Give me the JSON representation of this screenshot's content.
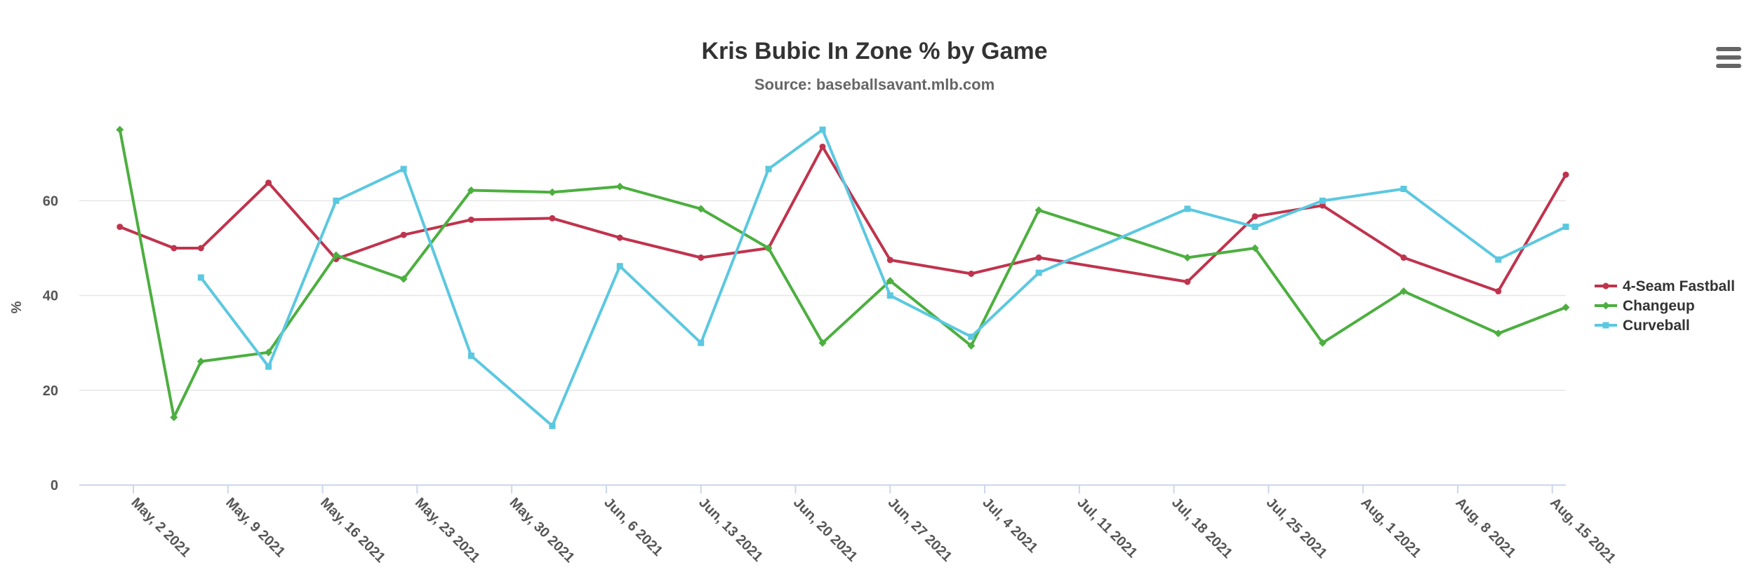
{
  "chart_data": {
    "type": "line",
    "title": "Kris Bubic In Zone % by Game",
    "subtitle": "Source: baseballsavant.mlb.com",
    "xlabel": "",
    "ylabel": "%",
    "x_type": "datetime",
    "xlim": [
      "2021-04-28",
      "2021-08-16"
    ],
    "ylim": [
      0,
      75
    ],
    "y_ticks": [
      0,
      20,
      40,
      60
    ],
    "x_ticks": [
      "2021-05-02",
      "2021-05-09",
      "2021-05-16",
      "2021-05-23",
      "2021-05-30",
      "2021-06-06",
      "2021-06-13",
      "2021-06-20",
      "2021-06-27",
      "2021-07-04",
      "2021-07-11",
      "2021-07-18",
      "2021-07-25",
      "2021-08-01",
      "2021-08-08",
      "2021-08-15"
    ],
    "x_tick_labels": [
      "May, 2 2021",
      "May, 9 2021",
      "May, 16 2021",
      "May, 23 2021",
      "May, 30 2021",
      "Jun, 6 2021",
      "Jun, 13 2021",
      "Jun, 20 2021",
      "Jun, 27 2021",
      "Jul, 4 2021",
      "Jul, 11 2021",
      "Jul, 18 2021",
      "Jul, 25 2021",
      "Aug, 1 2021",
      "Aug, 8 2021",
      "Aug, 15 2021"
    ],
    "grid": true,
    "legend_position": "right",
    "series": [
      {
        "name": "4-Seam Fastball",
        "color": "#c0334d",
        "marker": "circle",
        "points": [
          [
            "2021-05-01",
            54.5
          ],
          [
            "2021-05-05",
            50.0
          ],
          [
            "2021-05-07",
            50.0
          ],
          [
            "2021-05-12",
            63.8
          ],
          [
            "2021-05-17",
            47.7
          ],
          [
            "2021-05-22",
            52.8
          ],
          [
            "2021-05-27",
            56.0
          ],
          [
            "2021-06-02",
            56.3
          ],
          [
            "2021-06-07",
            52.2
          ],
          [
            "2021-06-13",
            48.0
          ],
          [
            "2021-06-18",
            50.0
          ],
          [
            "2021-06-22",
            71.4
          ],
          [
            "2021-06-27",
            47.5
          ],
          [
            "2021-07-03",
            44.6
          ],
          [
            "2021-07-08",
            48.0
          ],
          [
            "2021-07-19",
            42.9
          ],
          [
            "2021-07-24",
            56.7
          ],
          [
            "2021-07-29",
            59.0
          ],
          [
            "2021-08-04",
            48.0
          ],
          [
            "2021-08-11",
            40.9
          ],
          [
            "2021-08-16",
            65.5
          ]
        ]
      },
      {
        "name": "Changeup",
        "color": "#4caf3f",
        "marker": "diamond",
        "points": [
          [
            "2021-05-01",
            75.0
          ],
          [
            "2021-05-05",
            14.3
          ],
          [
            "2021-05-07",
            26.1
          ],
          [
            "2021-05-12",
            28.0
          ],
          [
            "2021-05-17",
            48.5
          ],
          [
            "2021-05-22",
            43.5
          ],
          [
            "2021-05-27",
            62.2
          ],
          [
            "2021-06-02",
            61.8
          ],
          [
            "2021-06-07",
            63.0
          ],
          [
            "2021-06-13",
            58.3
          ],
          [
            "2021-06-18",
            50.0
          ],
          [
            "2021-06-22",
            30.0
          ],
          [
            "2021-06-27",
            43.1
          ],
          [
            "2021-07-03",
            29.4
          ],
          [
            "2021-07-08",
            58.0
          ],
          [
            "2021-07-19",
            48.0
          ],
          [
            "2021-07-24",
            50.0
          ],
          [
            "2021-07-29",
            30.0
          ],
          [
            "2021-08-04",
            40.9
          ],
          [
            "2021-08-11",
            32.0
          ],
          [
            "2021-08-16",
            37.5
          ]
        ]
      },
      {
        "name": "Curveball",
        "color": "#5bc8e0",
        "marker": "square",
        "points": [
          [
            "2021-05-07",
            43.8
          ],
          [
            "2021-05-12",
            25.0
          ],
          [
            "2021-05-17",
            60.0
          ],
          [
            "2021-05-22",
            66.7
          ],
          [
            "2021-05-27",
            27.3
          ],
          [
            "2021-06-02",
            12.5
          ],
          [
            "2021-06-07",
            46.2
          ],
          [
            "2021-06-13",
            30.0
          ],
          [
            "2021-06-18",
            66.7
          ],
          [
            "2021-06-22",
            75.0
          ],
          [
            "2021-06-27",
            40.0
          ],
          [
            "2021-07-03",
            31.3
          ],
          [
            "2021-07-08",
            44.8
          ],
          [
            "2021-07-19",
            58.3
          ],
          [
            "2021-07-24",
            54.5
          ],
          [
            "2021-07-29",
            60.0
          ],
          [
            "2021-08-04",
            62.5
          ],
          [
            "2021-08-11",
            47.6
          ],
          [
            "2021-08-16",
            54.5
          ]
        ]
      }
    ]
  }
}
